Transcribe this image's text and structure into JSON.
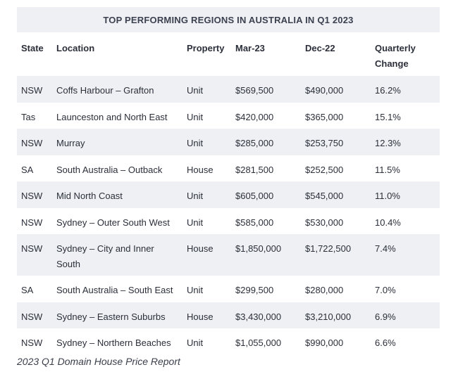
{
  "title": "TOP PERFORMING REGIONS IN AUSTRALIA IN Q1 2023",
  "headers": {
    "state": "State",
    "location": "Location",
    "property": "Property",
    "mar23": "Mar-23",
    "dec22": "Dec-22",
    "change_line1": "Quarterly",
    "change_line2": "Change"
  },
  "rows": [
    {
      "state": "NSW",
      "location": "Coffs Harbour – Grafton",
      "property": "Unit",
      "mar23": "$569,500",
      "dec22": "$490,000",
      "change": "16.2%"
    },
    {
      "state": "Tas",
      "location": "Launceston and North East",
      "property": "Unit",
      "mar23": "$420,000",
      "dec22": "$365,000",
      "change": "15.1%"
    },
    {
      "state": "NSW",
      "location": "Murray",
      "property": "Unit",
      "mar23": "$285,000",
      "dec22": "$253,750",
      "change": "12.3%"
    },
    {
      "state": "SA",
      "location": "South Australia – Outback",
      "property": "House",
      "mar23": "$281,500",
      "dec22": "$252,500",
      "change": "11.5%"
    },
    {
      "state": "NSW",
      "location": "Mid North Coast",
      "property": "Unit",
      "mar23": "$605,000",
      "dec22": "$545,000",
      "change": "11.0%"
    },
    {
      "state": "NSW",
      "location": "Sydney – Outer South West",
      "property": "Unit",
      "mar23": "$585,000",
      "dec22": "$530,000",
      "change": "10.4%"
    },
    {
      "state": "NSW",
      "location_line1": "Sydney – City and Inner",
      "location_line2": "South",
      "property": "House",
      "mar23": "$1,850,000",
      "dec22": "$1,722,500",
      "change": "7.4%"
    },
    {
      "state": "SA",
      "location": "South Australia – South East",
      "property": "Unit",
      "mar23": "$299,500",
      "dec22": "$280,000",
      "change": "7.0%"
    },
    {
      "state": "NSW",
      "location": "Sydney – Eastern Suburbs",
      "property": "House",
      "mar23": "$3,430,000",
      "dec22": "$3,210,000",
      "change": "6.9%"
    },
    {
      "state": "NSW",
      "location": "Sydney – Northern Beaches",
      "property": "Unit",
      "mar23": "$1,055,000",
      "dec22": "$990,000",
      "change": "6.6%"
    }
  ],
  "caption": "2023 Q1 Domain House Price Report",
  "colors": {
    "shade": "#eef0f3",
    "text": "#2b2f3a"
  }
}
